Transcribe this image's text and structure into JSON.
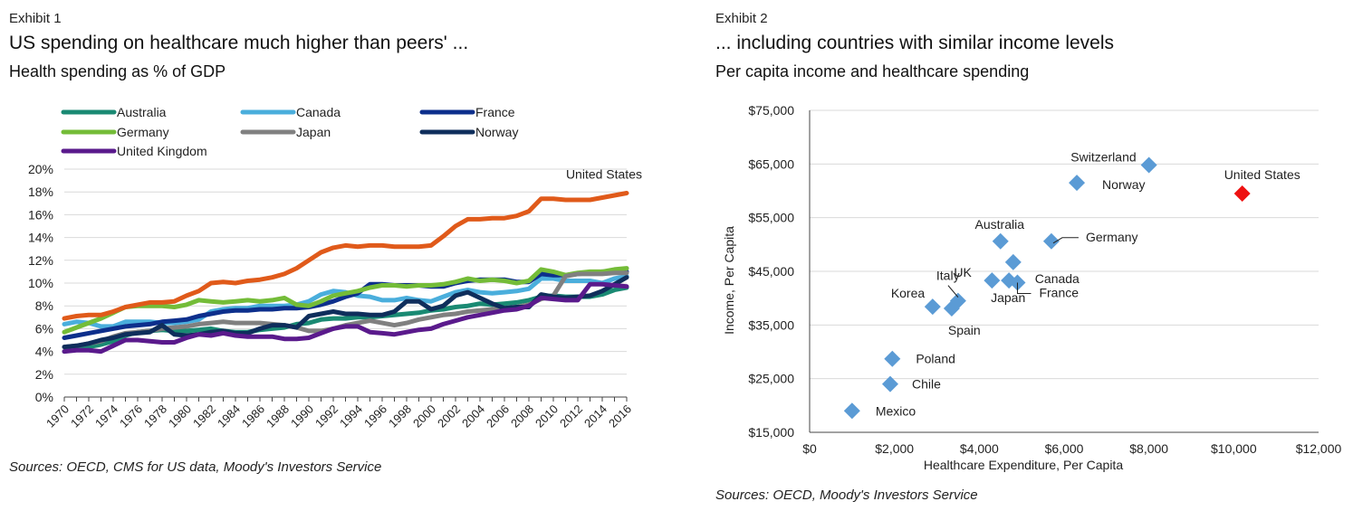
{
  "exhibit1": {
    "label": "Exhibit 1",
    "title": "US spending on healthcare much higher than peers' ...",
    "subtitle": "Health spending as % of GDP",
    "source": "Sources: OECD, CMS for US data, Moody's Investors Service"
  },
  "exhibit2": {
    "label": "Exhibit 2",
    "title": "... including countries with similar income levels",
    "subtitle": "Per capita income and healthcare spending",
    "source": "Sources: OECD, Moody's Investors Service"
  },
  "chart_data": [
    {
      "type": "line",
      "title": "Health spending as % of GDP",
      "xlabel": "",
      "ylabel": "",
      "ylim": [
        0,
        20
      ],
      "yticks": [
        "0%",
        "2%",
        "4%",
        "6%",
        "8%",
        "10%",
        "12%",
        "14%",
        "16%",
        "18%",
        "20%"
      ],
      "xticks": [
        "1970",
        "1972",
        "1974",
        "1976",
        "1978",
        "1980",
        "1982",
        "1984",
        "1986",
        "1988",
        "1990",
        "1992",
        "1994",
        "1996",
        "1998",
        "2000",
        "2002",
        "2004",
        "2006",
        "2008",
        "2010",
        "2012",
        "2014",
        "2016"
      ],
      "x": [
        1970,
        1971,
        1972,
        1973,
        1974,
        1975,
        1976,
        1977,
        1978,
        1979,
        1980,
        1981,
        1982,
        1983,
        1984,
        1985,
        1986,
        1987,
        1988,
        1989,
        1990,
        1991,
        1992,
        1993,
        1994,
        1995,
        1996,
        1997,
        1998,
        1999,
        2000,
        2001,
        2002,
        2003,
        2004,
        2005,
        2006,
        2007,
        2008,
        2009,
        2010,
        2011,
        2012,
        2013,
        2014,
        2015,
        2016
      ],
      "grid": true,
      "legend_position": "top",
      "annotations": [
        {
          "text": "United States",
          "series": "United States"
        }
      ],
      "series": [
        {
          "name": "Australia",
          "color": "#1a8a73",
          "values": [
            4.0,
            4.2,
            4.4,
            4.6,
            4.9,
            5.4,
            5.7,
            5.8,
            5.9,
            5.8,
            5.8,
            5.9,
            6.0,
            5.8,
            5.7,
            5.7,
            5.9,
            6.0,
            6.1,
            6.4,
            6.5,
            6.8,
            6.9,
            6.9,
            7.0,
            7.0,
            7.1,
            7.2,
            7.3,
            7.4,
            7.6,
            7.7,
            7.9,
            8.0,
            8.2,
            8.1,
            8.2,
            8.3,
            8.5,
            8.8,
            8.9,
            8.8,
            8.8,
            8.8,
            9.0,
            9.4,
            9.6
          ]
        },
        {
          "name": "Canada",
          "color": "#4aaedc",
          "values": [
            6.4,
            6.6,
            6.5,
            6.2,
            6.2,
            6.6,
            6.6,
            6.6,
            6.5,
            6.5,
            6.6,
            6.8,
            7.5,
            7.7,
            7.8,
            7.8,
            8.0,
            8.0,
            8.0,
            8.1,
            8.4,
            9.0,
            9.3,
            9.2,
            8.9,
            8.8,
            8.5,
            8.5,
            8.7,
            8.5,
            8.4,
            8.8,
            9.2,
            9.4,
            9.2,
            9.1,
            9.2,
            9.3,
            9.5,
            10.4,
            10.4,
            10.2,
            10.2,
            10.2,
            10.0,
            10.4,
            10.6
          ]
        },
        {
          "name": "France",
          "color": "#0d2f8c",
          "values": [
            5.2,
            5.4,
            5.6,
            5.8,
            6.0,
            6.2,
            6.3,
            6.4,
            6.6,
            6.7,
            6.8,
            7.1,
            7.3,
            7.5,
            7.6,
            7.6,
            7.7,
            7.7,
            7.8,
            7.8,
            7.9,
            8.1,
            8.4,
            8.8,
            9.1,
            9.9,
            9.9,
            9.8,
            9.8,
            9.8,
            9.7,
            9.7,
            10.0,
            10.2,
            10.3,
            10.3,
            10.3,
            10.1,
            10.1,
            10.8,
            10.7,
            10.7,
            10.8,
            10.9,
            11.0,
            11.0,
            11.0
          ]
        },
        {
          "name": "Germany",
          "color": "#74bc38",
          "values": [
            5.7,
            6.1,
            6.5,
            6.9,
            7.4,
            7.9,
            8.0,
            8.0,
            8.0,
            7.9,
            8.1,
            8.5,
            8.4,
            8.3,
            8.4,
            8.5,
            8.4,
            8.5,
            8.7,
            8.1,
            8.0,
            8.4,
            8.9,
            9.1,
            9.3,
            9.6,
            9.8,
            9.8,
            9.7,
            9.8,
            9.8,
            9.9,
            10.1,
            10.4,
            10.2,
            10.3,
            10.2,
            10.0,
            10.2,
            11.2,
            11.0,
            10.7,
            10.9,
            11.0,
            11.0,
            11.2,
            11.3
          ]
        },
        {
          "name": "Japan",
          "color": "#808080",
          "values": [
            4.4,
            4.5,
            4.7,
            4.9,
            5.3,
            5.6,
            5.7,
            5.8,
            6.0,
            6.1,
            6.2,
            6.4,
            6.5,
            6.6,
            6.5,
            6.5,
            6.5,
            6.4,
            6.3,
            6.1,
            5.8,
            5.8,
            6.0,
            6.3,
            6.5,
            6.7,
            6.5,
            6.3,
            6.5,
            6.8,
            7.0,
            7.2,
            7.3,
            7.5,
            7.6,
            7.7,
            7.8,
            7.9,
            8.1,
            8.6,
            8.9,
            10.6,
            10.8,
            10.8,
            10.8,
            10.9,
            10.9
          ]
        },
        {
          "name": "Norway",
          "color": "#0f2e5c",
          "values": [
            4.4,
            4.5,
            4.7,
            5.0,
            5.2,
            5.5,
            5.6,
            5.7,
            6.3,
            5.5,
            5.4,
            5.5,
            5.7,
            5.8,
            5.6,
            5.6,
            6.0,
            6.3,
            6.3,
            6.1,
            7.1,
            7.3,
            7.5,
            7.3,
            7.3,
            7.2,
            7.2,
            7.5,
            8.4,
            8.4,
            7.7,
            8.0,
            8.9,
            9.2,
            8.7,
            8.2,
            7.8,
            7.9,
            7.9,
            9.0,
            8.8,
            8.7,
            8.8,
            8.9,
            9.3,
            9.9,
            10.5
          ]
        },
        {
          "name": "United Kingdom",
          "color": "#5a1a8c",
          "values": [
            4.0,
            4.1,
            4.1,
            4.0,
            4.5,
            5.0,
            5.0,
            4.9,
            4.8,
            4.8,
            5.2,
            5.5,
            5.4,
            5.6,
            5.4,
            5.3,
            5.3,
            5.3,
            5.1,
            5.1,
            5.2,
            5.6,
            6.0,
            6.2,
            6.2,
            5.7,
            5.6,
            5.5,
            5.7,
            5.9,
            6.0,
            6.4,
            6.7,
            7.0,
            7.2,
            7.4,
            7.6,
            7.7,
            8.0,
            8.7,
            8.6,
            8.5,
            8.5,
            9.9,
            9.9,
            9.8,
            9.7
          ]
        },
        {
          "name": "United States",
          "color": "#e05a1a",
          "values": [
            6.9,
            7.1,
            7.2,
            7.2,
            7.5,
            7.9,
            8.1,
            8.3,
            8.3,
            8.4,
            8.9,
            9.3,
            10.0,
            10.1,
            10.0,
            10.2,
            10.3,
            10.5,
            10.8,
            11.3,
            12.0,
            12.7,
            13.1,
            13.3,
            13.2,
            13.3,
            13.3,
            13.2,
            13.2,
            13.2,
            13.3,
            14.1,
            15.0,
            15.6,
            15.6,
            15.7,
            15.7,
            15.9,
            16.3,
            17.4,
            17.4,
            17.3,
            17.3,
            17.3,
            17.5,
            17.7,
            17.9
          ]
        }
      ]
    },
    {
      "type": "scatter",
      "title": "Per capita income and healthcare spending",
      "xlabel": "Healthcare Expenditure, Per Capita",
      "ylabel": "Income, Per Capita",
      "xlim": [
        0,
        12000
      ],
      "ylim": [
        15000,
        75000
      ],
      "xticks": [
        "$0",
        "$2,000",
        "$4,000",
        "$6,000",
        "$8,000",
        "$10,000",
        "$12,000"
      ],
      "yticks": [
        "$15,000",
        "$25,000",
        "$35,000",
        "$45,000",
        "$55,000",
        "$65,000",
        "$75,000"
      ],
      "grid": true,
      "points": [
        {
          "label": "Switzerland",
          "x": 8000,
          "y": 64800,
          "color": "#5b9bd5"
        },
        {
          "label": "Norway",
          "x": 6300,
          "y": 61500,
          "color": "#5b9bd5"
        },
        {
          "label": "United States",
          "x": 10200,
          "y": 59500,
          "color": "#ee1111"
        },
        {
          "label": "Australia",
          "x": 4500,
          "y": 50600,
          "color": "#5b9bd5"
        },
        {
          "label": "Germany",
          "x": 5700,
          "y": 50600,
          "color": "#5b9bd5"
        },
        {
          "label": "Canada",
          "x": 4800,
          "y": 46700,
          "color": "#5b9bd5"
        },
        {
          "label": "UK",
          "x": 4300,
          "y": 43300,
          "color": "#5b9bd5"
        },
        {
          "label": "Japan",
          "x": 4700,
          "y": 43300,
          "color": "#5b9bd5"
        },
        {
          "label": "France",
          "x": 4900,
          "y": 42900,
          "color": "#5b9bd5"
        },
        {
          "label": "Italy",
          "x": 3500,
          "y": 39500,
          "color": "#5b9bd5"
        },
        {
          "label": "Korea",
          "x": 2900,
          "y": 38400,
          "color": "#5b9bd5"
        },
        {
          "label": "Spain",
          "x": 3350,
          "y": 38100,
          "color": "#5b9bd5"
        },
        {
          "label": "Poland",
          "x": 1950,
          "y": 28700,
          "color": "#5b9bd5"
        },
        {
          "label": "Chile",
          "x": 1900,
          "y": 24000,
          "color": "#5b9bd5"
        },
        {
          "label": "Mexico",
          "x": 1000,
          "y": 19000,
          "color": "#5b9bd5"
        }
      ]
    }
  ]
}
